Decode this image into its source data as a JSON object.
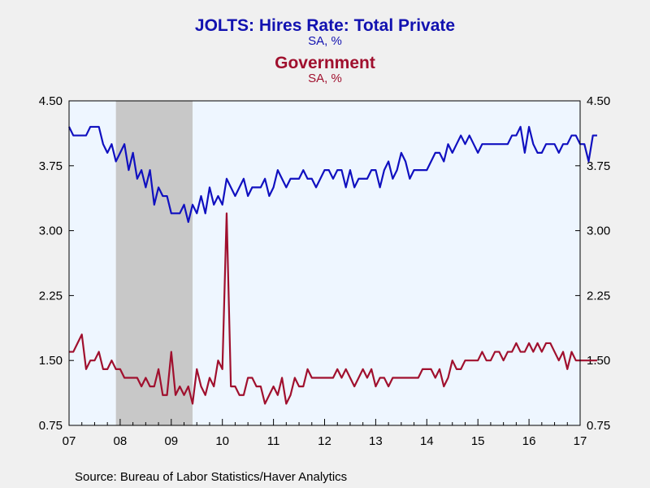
{
  "titles": {
    "series1_title": "JOLTS: Hires Rate: Total Private",
    "series1_sub": "SA, %",
    "series2_title": "Government",
    "series2_sub": "SA, %"
  },
  "source": "Source:  Bureau of Labor Statistics/Haver Analytics",
  "colors": {
    "private": "#1010c0",
    "government": "#a0102e",
    "plot_bg": "#eef6ff",
    "recession": "#c8c8c8",
    "page_bg": "#f0f0f0"
  },
  "chart_data": {
    "type": "line",
    "x_start": "2007-01",
    "x_end": "2017-01",
    "x_ticks": [
      "07",
      "08",
      "09",
      "10",
      "11",
      "12",
      "13",
      "14",
      "15",
      "16",
      "17"
    ],
    "y_ticks": [
      "4.50",
      "3.75",
      "3.00",
      "2.25",
      "1.50",
      "0.75"
    ],
    "ylim": [
      0.75,
      4.5
    ],
    "recession": {
      "start": "2007-12",
      "end": "2009-06"
    },
    "grid": false,
    "dual_axis_same_scale": true,
    "series": [
      {
        "name": "JOLTS: Hires Rate: Total Private",
        "values": [
          4.2,
          4.1,
          4.1,
          4.1,
          4.1,
          4.2,
          4.2,
          4.2,
          4.0,
          3.9,
          4.0,
          3.8,
          3.9,
          4.0,
          3.7,
          3.9,
          3.6,
          3.7,
          3.5,
          3.7,
          3.3,
          3.5,
          3.4,
          3.4,
          3.2,
          3.2,
          3.2,
          3.3,
          3.1,
          3.3,
          3.2,
          3.4,
          3.2,
          3.5,
          3.3,
          3.4,
          3.3,
          3.6,
          3.5,
          3.4,
          3.5,
          3.6,
          3.4,
          3.5,
          3.5,
          3.5,
          3.6,
          3.4,
          3.5,
          3.7,
          3.6,
          3.5,
          3.6,
          3.6,
          3.6,
          3.7,
          3.6,
          3.6,
          3.5,
          3.6,
          3.7,
          3.7,
          3.6,
          3.7,
          3.7,
          3.5,
          3.7,
          3.5,
          3.6,
          3.6,
          3.6,
          3.7,
          3.7,
          3.5,
          3.7,
          3.8,
          3.6,
          3.7,
          3.9,
          3.8,
          3.6,
          3.7,
          3.7,
          3.7,
          3.7,
          3.8,
          3.9,
          3.9,
          3.8,
          4.0,
          3.9,
          4.0,
          4.1,
          4.0,
          4.1,
          4.0,
          3.9,
          4.0,
          4.0,
          4.0,
          4.0,
          4.0,
          4.0,
          4.0,
          4.1,
          4.1,
          4.2,
          3.9,
          4.2,
          4.0,
          3.9,
          3.9,
          4.0,
          4.0,
          4.0,
          3.9,
          4.0,
          4.0,
          4.1,
          4.1,
          4.0,
          4.0,
          3.8,
          4.1,
          4.1
        ]
      },
      {
        "name": "Government",
        "values": [
          1.6,
          1.6,
          1.7,
          1.8,
          1.4,
          1.5,
          1.5,
          1.6,
          1.4,
          1.4,
          1.5,
          1.4,
          1.4,
          1.3,
          1.3,
          1.3,
          1.3,
          1.2,
          1.3,
          1.2,
          1.2,
          1.4,
          1.1,
          1.1,
          1.6,
          1.1,
          1.2,
          1.1,
          1.2,
          1.0,
          1.4,
          1.2,
          1.1,
          1.3,
          1.2,
          1.5,
          1.4,
          3.2,
          1.2,
          1.2,
          1.1,
          1.1,
          1.3,
          1.3,
          1.2,
          1.2,
          1.0,
          1.1,
          1.2,
          1.1,
          1.3,
          1.0,
          1.1,
          1.3,
          1.2,
          1.2,
          1.4,
          1.3,
          1.3,
          1.3,
          1.3,
          1.3,
          1.3,
          1.4,
          1.3,
          1.4,
          1.3,
          1.2,
          1.3,
          1.4,
          1.3,
          1.4,
          1.2,
          1.3,
          1.3,
          1.2,
          1.3,
          1.3,
          1.3,
          1.3,
          1.3,
          1.3,
          1.3,
          1.4,
          1.4,
          1.4,
          1.3,
          1.4,
          1.2,
          1.3,
          1.5,
          1.4,
          1.4,
          1.5,
          1.5,
          1.5,
          1.5,
          1.6,
          1.5,
          1.5,
          1.6,
          1.6,
          1.5,
          1.6,
          1.6,
          1.7,
          1.6,
          1.6,
          1.7,
          1.6,
          1.7,
          1.6,
          1.7,
          1.7,
          1.6,
          1.5,
          1.6,
          1.4,
          1.6,
          1.5,
          1.5,
          1.5,
          1.5,
          1.5,
          1.5
        ]
      }
    ]
  }
}
